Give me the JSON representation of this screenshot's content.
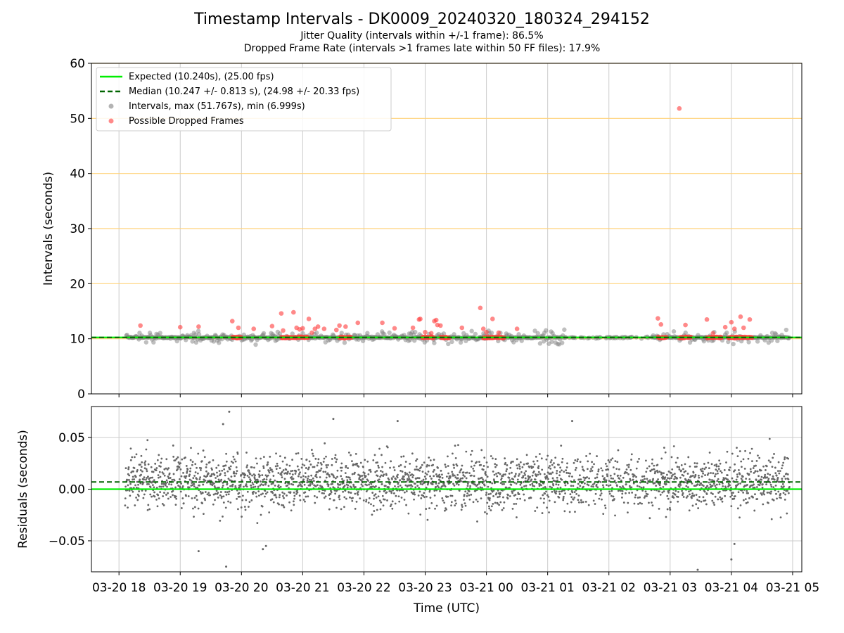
{
  "figure": {
    "title": "Timestamp Intervals - DK0009_20240320_180324_294152",
    "subtitle_1": "Jitter Quality (intervals within +/-1 frame): 86.5%",
    "subtitle_2": "Dropped Frame Rate (intervals >1 frames late within 50 FF files): 17.9%"
  },
  "colors": {
    "expected_line": "#00ee00",
    "median_line": "#006400",
    "interval_points": "#808080",
    "dropped_points": "#ff3b3b",
    "threshold_lines": "#ffd27a",
    "grid": "#cccccc",
    "residual_points": "#666666"
  },
  "legend": {
    "expected": "Expected (10.240s), (25.00 fps)",
    "median": "Median (10.247 +/- 0.813 s), (24.98 +/- 20.33 fps)",
    "intervals": "Intervals, max (51.767s), min (6.999s)",
    "dropped": "Possible Dropped Frames"
  },
  "chart_data": [
    {
      "type": "scatter",
      "ylabel": "Intervals (seconds)",
      "ylim": [
        0,
        60
      ],
      "yticks": [
        0,
        10,
        20,
        30,
        40,
        50,
        60
      ],
      "x_range_hours": [
        17.55,
        29.15
      ],
      "x_unit": "hours since 2024-03-20 00:00 UTC",
      "expected": 10.24,
      "median": 10.247,
      "threshold_lines": [
        10,
        20,
        30,
        40,
        50,
        60
      ],
      "legend_position": "upper-left",
      "grid": "vertical",
      "max_interval": 51.767,
      "min_interval": 6.999,
      "dropped_points": [
        [
          18.35,
          12.4
        ],
        [
          19.0,
          12.1
        ],
        [
          19.3,
          12.2
        ],
        [
          19.85,
          13.2
        ],
        [
          19.95,
          12.0
        ],
        [
          20.2,
          11.8
        ],
        [
          20.5,
          12.3
        ],
        [
          20.65,
          14.6
        ],
        [
          20.68,
          11.5
        ],
        [
          20.85,
          14.8
        ],
        [
          20.9,
          12.0
        ],
        [
          20.95,
          11.7
        ],
        [
          21.0,
          11.9
        ],
        [
          21.1,
          13.6
        ],
        [
          21.15,
          11.1
        ],
        [
          21.2,
          11.8
        ],
        [
          21.25,
          12.2
        ],
        [
          21.35,
          11.8
        ],
        [
          21.55,
          11.6
        ],
        [
          21.6,
          12.4
        ],
        [
          21.7,
          12.2
        ],
        [
          21.9,
          12.9
        ],
        [
          22.3,
          12.9
        ],
        [
          22.5,
          11.9
        ],
        [
          22.8,
          12.0
        ],
        [
          22.9,
          13.5
        ],
        [
          22.92,
          13.6
        ],
        [
          23.0,
          11.2
        ],
        [
          23.1,
          11.0
        ],
        [
          23.15,
          13.2
        ],
        [
          23.18,
          13.4
        ],
        [
          23.2,
          12.5
        ],
        [
          23.25,
          12.4
        ],
        [
          23.6,
          12.0
        ],
        [
          23.9,
          15.6
        ],
        [
          23.95,
          11.8
        ],
        [
          24.0,
          11.2
        ],
        [
          24.1,
          13.6
        ],
        [
          24.2,
          11.1
        ],
        [
          24.5,
          11.8
        ],
        [
          26.8,
          13.7
        ],
        [
          26.85,
          12.6
        ],
        [
          27.15,
          51.8
        ],
        [
          27.25,
          12.5
        ],
        [
          27.6,
          13.5
        ],
        [
          27.7,
          11.0
        ],
        [
          27.9,
          12.1
        ],
        [
          28.0,
          13.0
        ],
        [
          28.05,
          11.8
        ],
        [
          28.15,
          14.0
        ],
        [
          28.2,
          12.0
        ],
        [
          28.3,
          13.5
        ]
      ]
    },
    {
      "type": "scatter",
      "ylabel": "Residuals (seconds)",
      "xlabel": "Time (UTC)",
      "ylim": [
        -0.08,
        0.08
      ],
      "yticks": [
        0.05,
        0.0,
        -0.05
      ],
      "ytick_labels": [
        "0.05",
        "0.00",
        "−0.05"
      ],
      "zero_line": 0.0,
      "median_offset": 0.007,
      "grid": "both",
      "x_range_hours": [
        17.55,
        29.15
      ],
      "xticks": [
        {
          "hour": 18,
          "label": "03-20 18"
        },
        {
          "hour": 19,
          "label": "03-20 19"
        },
        {
          "hour": 20,
          "label": "03-20 20"
        },
        {
          "hour": 21,
          "label": "03-20 21"
        },
        {
          "hour": 22,
          "label": "03-20 22"
        },
        {
          "hour": 23,
          "label": "03-20 23"
        },
        {
          "hour": 24,
          "label": "03-21 00"
        },
        {
          "hour": 25,
          "label": "03-21 01"
        },
        {
          "hour": 26,
          "label": "03-21 02"
        },
        {
          "hour": 27,
          "label": "03-21 03"
        },
        {
          "hour": 28,
          "label": "03-21 04"
        },
        {
          "hour": 29,
          "label": "03-21 05"
        }
      ],
      "outliers": [
        [
          19.8,
          0.075
        ],
        [
          19.7,
          0.063
        ],
        [
          21.5,
          0.068
        ],
        [
          22.55,
          0.066
        ],
        [
          25.4,
          0.066
        ],
        [
          19.75,
          -0.075
        ],
        [
          20.35,
          -0.058
        ],
        [
          20.4,
          -0.055
        ],
        [
          19.3,
          -0.06
        ],
        [
          27.45,
          -0.078
        ],
        [
          28.0,
          -0.068
        ],
        [
          28.05,
          -0.053
        ]
      ]
    }
  ]
}
